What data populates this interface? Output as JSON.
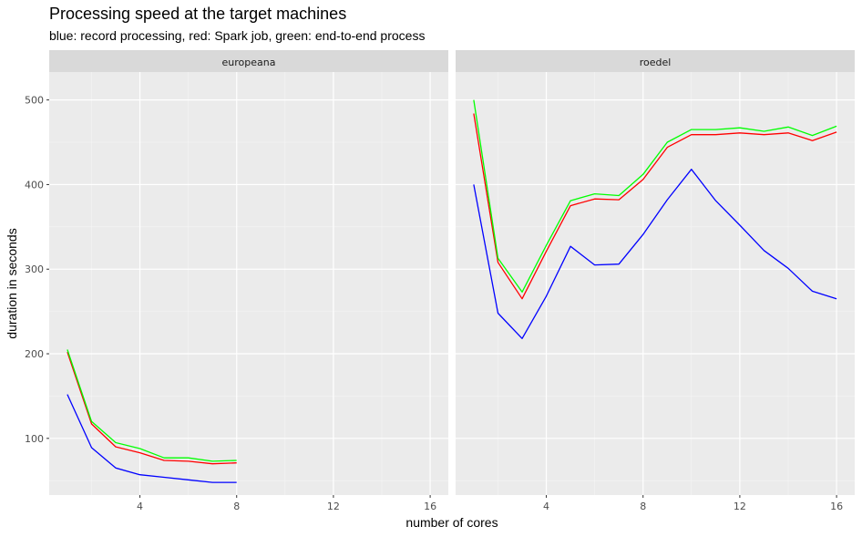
{
  "chart_data": {
    "type": "line",
    "title": "Processing speed at the target machines",
    "subtitle": "blue: record processing, red: Spark job, green: end-to-end process",
    "xlabel": "number of cores",
    "ylabel": "duration in seconds",
    "xlim": [
      0.25,
      16.75
    ],
    "ylim": [
      33,
      533
    ],
    "x_ticks": [
      4,
      8,
      12,
      16
    ],
    "y_ticks": [
      100,
      200,
      300,
      400,
      500
    ],
    "grid": true,
    "legend": "none",
    "panels": [
      {
        "strip": "europeana",
        "series": [
          {
            "color": "#0000FF",
            "x": [
              1,
              2,
              3,
              4,
              5,
              6,
              7,
              8
            ],
            "values": [
              152,
              89,
              65,
              57,
              54,
              51,
              48,
              48
            ]
          },
          {
            "color": "#FF0000",
            "x": [
              1,
              2,
              3,
              4,
              5,
              6,
              7,
              8
            ],
            "values": [
              202,
              117,
              90,
              83,
              74,
              73,
              70,
              71
            ]
          },
          {
            "color": "#00FF00",
            "x": [
              1,
              2,
              3,
              4,
              5,
              6,
              7,
              8
            ],
            "values": [
              205,
              120,
              95,
              88,
              77,
              77,
              73,
              74
            ]
          }
        ]
      },
      {
        "strip": "roedel",
        "series": [
          {
            "color": "#0000FF",
            "x": [
              1,
              2,
              3,
              4,
              5,
              6,
              7,
              8,
              9,
              10,
              11,
              12,
              13,
              14,
              15,
              16
            ],
            "values": [
              400,
              248,
              218,
              268,
              327,
              305,
              306,
              341,
              382,
              418,
              381,
              352,
              322,
              301,
              274,
              265
            ]
          },
          {
            "color": "#FF0000",
            "x": [
              1,
              2,
              3,
              4,
              5,
              6,
              7,
              8,
              9,
              10,
              11,
              12,
              13,
              14,
              15,
              16
            ],
            "values": [
              484,
              308,
              265,
              321,
              375,
              383,
              382,
              406,
              444,
              459,
              459,
              461,
              459,
              461,
              452,
              462
            ]
          },
          {
            "color": "#00FF00",
            "x": [
              1,
              2,
              3,
              4,
              5,
              6,
              7,
              8,
              9,
              10,
              11,
              12,
              13,
              14,
              15,
              16
            ],
            "values": [
              500,
              313,
              273,
              328,
              381,
              389,
              387,
              412,
              450,
              465,
              465,
              467,
              463,
              468,
              458,
              469
            ]
          }
        ]
      }
    ]
  }
}
